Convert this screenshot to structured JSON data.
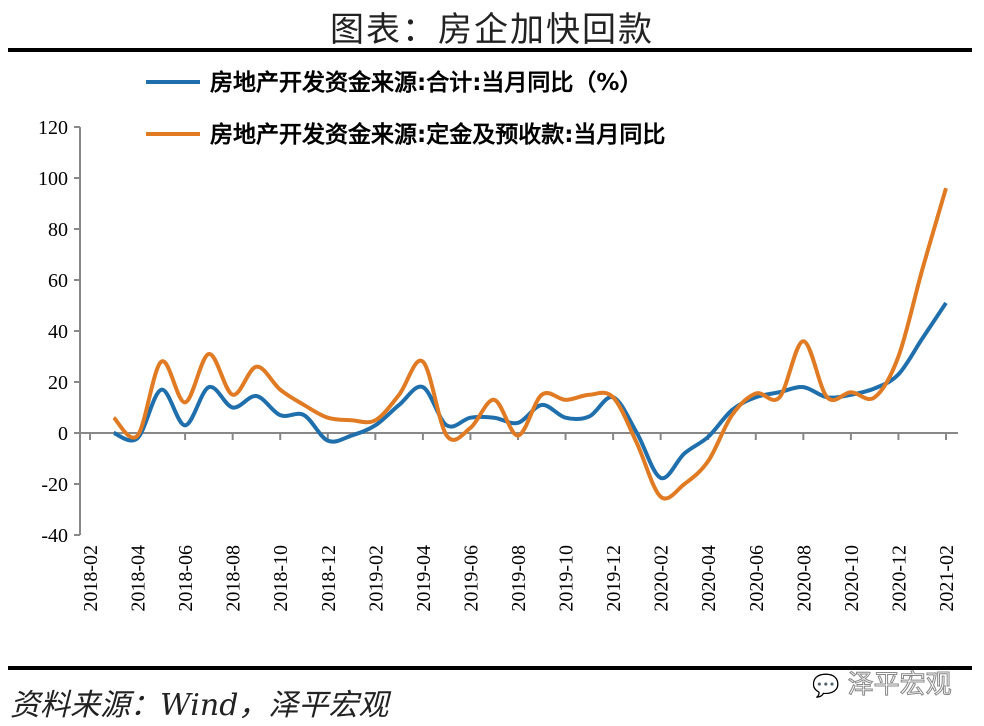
{
  "header": {
    "title": "图表：房企加快回款"
  },
  "footer": {
    "source": "资料来源：Wind，泽平宏观",
    "watermark": "泽平宏观",
    "watermark_icon": "wechat-icon"
  },
  "chart_data": {
    "type": "line",
    "title": "图表：房企加快回款",
    "xlabel": "",
    "ylabel": "",
    "ylim": [
      -40,
      120
    ],
    "yticks": [
      -40,
      -20,
      0,
      20,
      40,
      60,
      80,
      100,
      120
    ],
    "xlim": [
      "2018-02",
      "2021-02"
    ],
    "xticks": [
      "2018-02",
      "2018-04",
      "2018-06",
      "2018-08",
      "2018-10",
      "2018-12",
      "2019-02",
      "2019-04",
      "2019-06",
      "2019-08",
      "2019-10",
      "2019-12",
      "2020-02",
      "2020-04",
      "2020-06",
      "2020-08",
      "2020-10",
      "2020-12",
      "2021-02"
    ],
    "legend_position": "top",
    "grid": false,
    "x": [
      "2018-03",
      "2018-04",
      "2018-05",
      "2018-06",
      "2018-07",
      "2018-08",
      "2018-09",
      "2018-10",
      "2018-11",
      "2018-12",
      "2019-01",
      "2019-02",
      "2019-03",
      "2019-04",
      "2019-05",
      "2019-06",
      "2019-07",
      "2019-08",
      "2019-09",
      "2019-10",
      "2019-11",
      "2019-12",
      "2020-01",
      "2020-02",
      "2020-03",
      "2020-04",
      "2020-05",
      "2020-06",
      "2020-07",
      "2020-08",
      "2020-09",
      "2020-10",
      "2020-11",
      "2020-12",
      "2021-01",
      "2021-02"
    ],
    "series": [
      {
        "name": "房地产开发资金来源:合计:当月同比（%）",
        "color": "#1f6fad",
        "values": [
          0,
          -2,
          17,
          3,
          18,
          10,
          14.5,
          7,
          7,
          -3,
          -1,
          3,
          11,
          18,
          3,
          6,
          6,
          4,
          11,
          6,
          6.5,
          14,
          0,
          -17.6,
          -8,
          -1.5,
          9,
          14,
          16,
          18,
          14,
          15,
          17.5,
          23,
          37,
          51
        ]
      },
      {
        "name": "房地产开发资金来源:定金及预收款:当月同比",
        "color": "#e07b24",
        "values": [
          6,
          -1,
          28,
          12,
          31,
          15,
          26,
          17,
          11,
          6,
          5,
          5,
          15,
          28,
          -1,
          2,
          13,
          -1,
          15,
          13,
          15,
          14,
          -4,
          -25,
          -20,
          -11,
          7,
          15.5,
          14,
          36,
          14,
          16,
          14,
          30,
          64,
          96
        ]
      }
    ]
  }
}
